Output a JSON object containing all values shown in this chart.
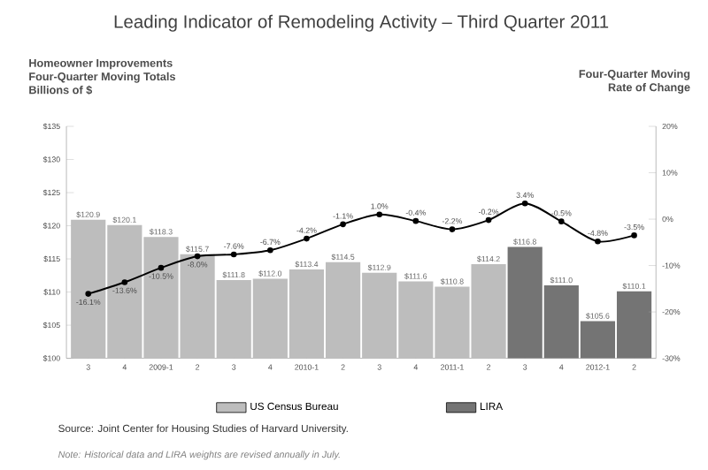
{
  "chart_data": {
    "type": "bar",
    "title": "Leading Indicator of Remodeling Activity – Third Quarter 2011",
    "ylabel": "Homeowner Improvements Four-Quarter Moving Totals Billions of $",
    "y2label": "Four-Quarter Moving Rate of Change",
    "categories": [
      "3",
      "4",
      "2009-1",
      "2",
      "3",
      "4",
      "2010-1",
      "2",
      "3",
      "4",
      "2011-1",
      "2",
      "3",
      "4",
      "2012-1",
      "2"
    ],
    "series": [
      {
        "name": "US Census Bureau",
        "color": "#bdbdbd",
        "values": [
          120.9,
          120.1,
          118.3,
          115.7,
          111.8,
          112.0,
          113.4,
          114.5,
          112.9,
          111.6,
          110.8,
          114.2,
          null,
          null,
          null,
          null
        ],
        "value_labels": [
          "$120.9",
          "$120.1",
          "$118.3",
          "$115.7",
          "$111.8",
          "$112.0",
          "$113.4",
          "$114.5",
          "$112.9",
          "$111.6",
          "$110.8",
          "$114.2",
          null,
          null,
          null,
          null
        ]
      },
      {
        "name": "LIRA",
        "color": "#747474",
        "values": [
          null,
          null,
          null,
          null,
          null,
          null,
          null,
          null,
          null,
          null,
          null,
          null,
          116.8,
          111.0,
          105.6,
          110.1
        ],
        "value_labels": [
          null,
          null,
          null,
          null,
          null,
          null,
          null,
          null,
          null,
          null,
          null,
          null,
          "$116.8",
          "$111.0",
          "$105.6",
          "$110.1"
        ]
      },
      {
        "type": "line",
        "axis": "y2",
        "color": "#000000",
        "values": [
          -16.1,
          -13.6,
          -10.5,
          -8.0,
          -7.6,
          -6.7,
          -4.2,
          -1.1,
          1.0,
          -0.4,
          -2.2,
          -0.2,
          3.4,
          -0.5,
          -4.8,
          -3.5
        ],
        "value_labels": [
          "-16.1%",
          "-13.6%",
          "-10.5%",
          "-8.0%",
          "-7.6%",
          "-6.7%",
          "-4.2%",
          "-1.1%",
          "1.0%",
          "-0.4%",
          "-2.2%",
          "-0.2%",
          "3.4%",
          "-0.5%",
          "-4.8%",
          "-3.5%"
        ]
      }
    ],
    "ylim": [
      100,
      135
    ],
    "yticks": [
      {
        "value": 100,
        "label": "$100"
      },
      {
        "value": 105,
        "label": "$105"
      },
      {
        "value": 110,
        "label": "$110"
      },
      {
        "value": 115,
        "label": "$115"
      },
      {
        "value": 120,
        "label": "$120"
      },
      {
        "value": 125,
        "label": "$125"
      },
      {
        "value": 130,
        "label": "$130"
      },
      {
        "value": 135,
        "label": "$135"
      }
    ],
    "y2lim": [
      -30,
      20
    ],
    "y2ticks": [
      {
        "value": -30,
        "label": "-30%"
      },
      {
        "value": -20,
        "label": "-20%"
      },
      {
        "value": -10,
        "label": "-10%"
      },
      {
        "value": 0,
        "label": "0%"
      },
      {
        "value": 10,
        "label": "10%"
      },
      {
        "value": 20,
        "label": "20%"
      }
    ],
    "marker": "circle",
    "line_style": "solid",
    "legend": "bottom",
    "grid": false,
    "annotations": [
      "Source: Joint Center for Housing Studies of Harvard University.",
      "Note: Historical data and LIRA weights are revised annually in July."
    ]
  }
}
